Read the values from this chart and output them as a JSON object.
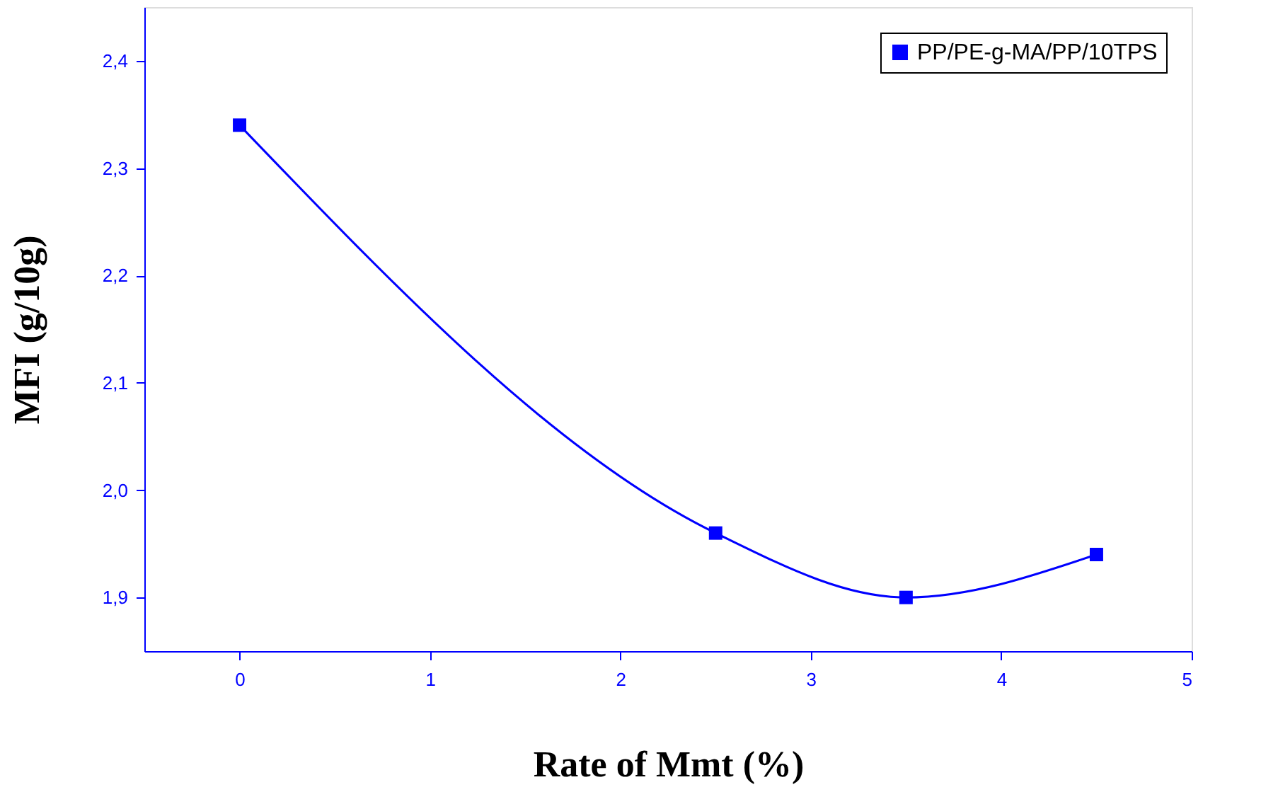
{
  "chart_data": {
    "type": "line",
    "xlabel": "Rate of Mmt (%)",
    "ylabel": "MFI (g/10g)",
    "x": [
      0,
      2.5,
      3.5,
      4.5
    ],
    "series": [
      {
        "name": "PP/PE-g-MA/PP/10TPS",
        "color": "#0000ff",
        "values": [
          2.34,
          1.96,
          1.9,
          1.94
        ]
      }
    ],
    "xlim": [
      -0.5,
      5
    ],
    "xticks": [
      0,
      1,
      2,
      3,
      4,
      5
    ],
    "ylim": [
      1.85,
      2.45
    ],
    "yticks": [
      {
        "value": 1.9,
        "label": "1,9"
      },
      {
        "value": 2.0,
        "label": "2,0"
      },
      {
        "value": 2.1,
        "label": "2,1"
      },
      {
        "value": 2.2,
        "label": "2,2"
      },
      {
        "value": 2.3,
        "label": "2,3"
      },
      {
        "value": 2.4,
        "label": "2,4"
      }
    ],
    "marker": "square",
    "line_style": "solid",
    "legend": "top right",
    "grid": false
  }
}
